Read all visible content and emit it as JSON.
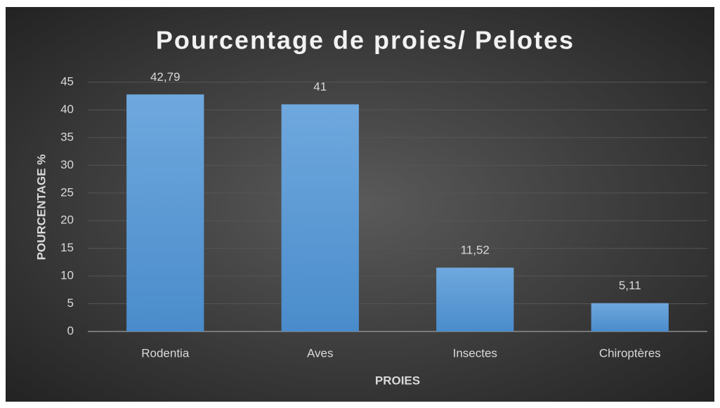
{
  "chart_data": {
    "type": "bar",
    "title": "Pourcentage de proies/ Pelotes",
    "x_label": "PROIES",
    "y_label": "POURCENTAGE %",
    "categories": [
      "Rodentia",
      "Aves",
      "Insectes",
      "Chiroptères"
    ],
    "values": [
      42.79,
      41,
      11.52,
      5.11
    ],
    "value_labels": [
      "42,79",
      "41",
      "11,52",
      "5,11"
    ],
    "color": "#5b9bd5",
    "ylim": [
      0,
      45
    ],
    "yticks": [
      0,
      5,
      10,
      15,
      20,
      25,
      30,
      35,
      40,
      45
    ],
    "grid": true
  }
}
